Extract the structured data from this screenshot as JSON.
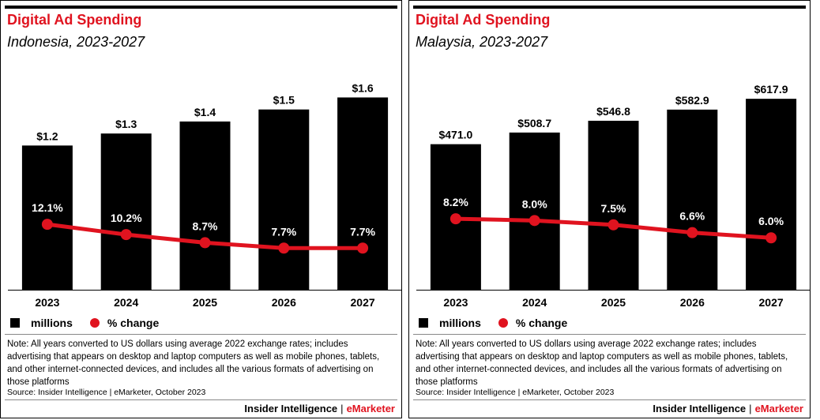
{
  "colors": {
    "bar": "#000000",
    "line": "#e0131f",
    "title": "#e0131f"
  },
  "panels": [
    {
      "title": "Digital Ad Spending",
      "subtitle": "Indonesia, 2023-2027",
      "legend": {
        "bar_label": "millions",
        "line_label": "% change"
      },
      "note": "Note: All years converted to US dollars using average 2022 exchange rates; includes advertising that appears on desktop and laptop computers as well as mobile phones, tablets, and other internet-connected devices, and includes all the various formats of advertising on those platforms",
      "source": "Source: Insider Intelligence | eMarketer, October 2023",
      "brand": {
        "left": "Insider Intelligence",
        "sep": "|",
        "right": "eMarketer"
      }
    },
    {
      "title": "Digital Ad Spending",
      "subtitle": "Malaysia, 2023-2027",
      "legend": {
        "bar_label": "millions",
        "line_label": "% change"
      },
      "note": "Note: All years converted to US dollars using average 2022 exchange rates; includes advertising that appears on desktop and laptop computers as well as mobile phones, tablets, and other internet-connected devices, and includes all the various formats of advertising on those platforms",
      "source": "Source: Insider Intelligence | eMarketer, October 2023",
      "brand": {
        "left": "Insider Intelligence",
        "sep": "|",
        "right": "eMarketer"
      }
    }
  ],
  "chart_data": [
    {
      "type": "bar",
      "title": "Digital Ad Spending",
      "subtitle": "Indonesia, 2023-2027",
      "categories": [
        "2023",
        "2024",
        "2025",
        "2026",
        "2027"
      ],
      "series": [
        {
          "name": "millions",
          "type": "bar",
          "values": [
            1.2,
            1.3,
            1.4,
            1.5,
            1.6
          ],
          "labels": [
            "$1.2",
            "$1.3",
            "$1.4",
            "$1.5",
            "$1.6"
          ]
        },
        {
          "name": "% change",
          "type": "line",
          "values": [
            12.1,
            10.2,
            8.7,
            7.7,
            7.7
          ],
          "labels": [
            "12.1%",
            "10.2%",
            "8.7%",
            "7.7%",
            "7.7%"
          ]
        }
      ],
      "ylim_bar": [
        0,
        1.8
      ],
      "ylim_line": [
        0,
        40
      ],
      "grid": false,
      "legend_position": "bottom-left"
    },
    {
      "type": "bar",
      "title": "Digital Ad Spending",
      "subtitle": "Malaysia, 2023-2027",
      "categories": [
        "2023",
        "2024",
        "2025",
        "2026",
        "2027"
      ],
      "series": [
        {
          "name": "millions",
          "type": "bar",
          "values": [
            471.0,
            508.7,
            546.8,
            582.9,
            617.9
          ],
          "labels": [
            "$471.0",
            "$508.7",
            "$546.8",
            "$582.9",
            "$617.9"
          ]
        },
        {
          "name": "% change",
          "type": "line",
          "values": [
            8.2,
            8.0,
            7.5,
            6.6,
            6.0
          ],
          "labels": [
            "8.2%",
            "8.0%",
            "7.5%",
            "6.6%",
            "6.0%"
          ]
        }
      ],
      "ylim_bar": [
        0,
        700
      ],
      "ylim_line": [
        0,
        25
      ],
      "grid": false,
      "legend_position": "bottom-left"
    }
  ]
}
